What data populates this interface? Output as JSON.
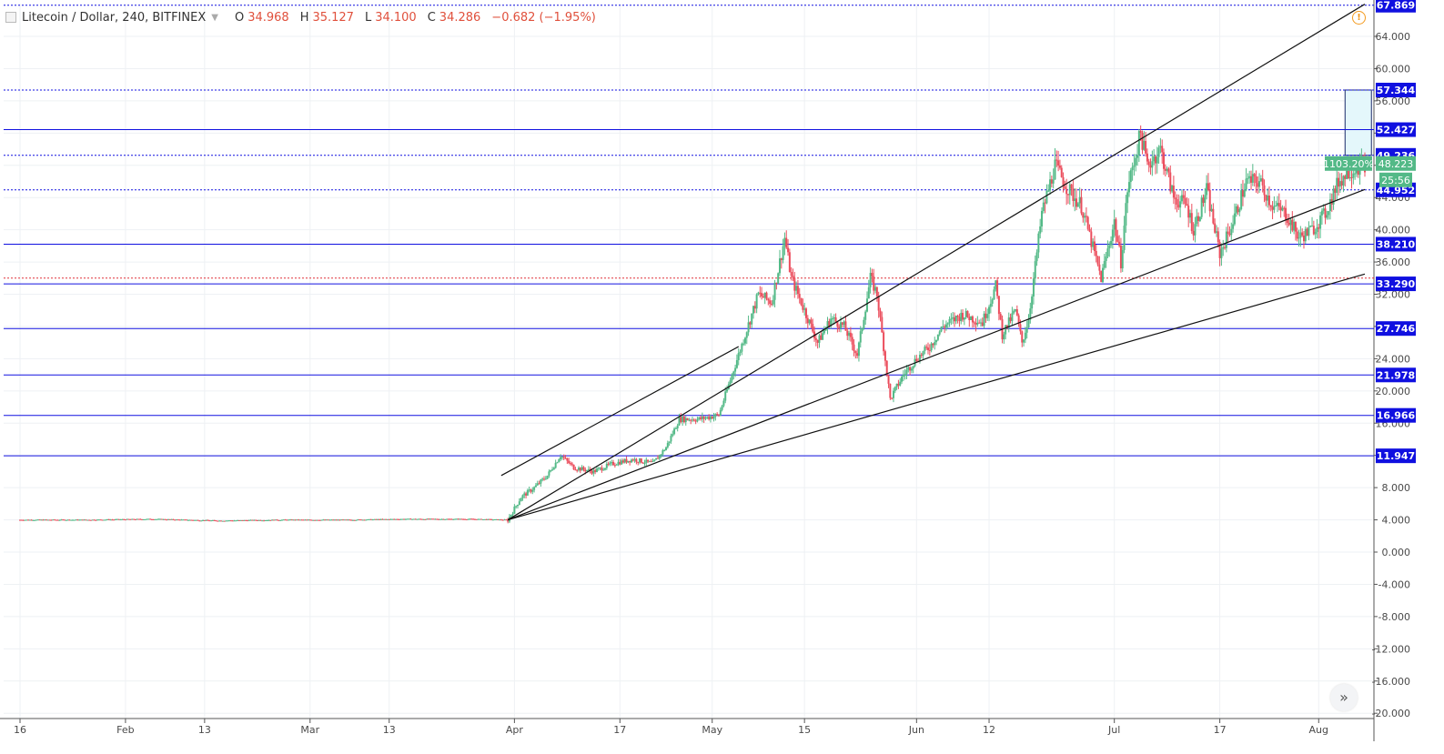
{
  "header": {
    "symbol_title": "Litecoin / Dollar, 240, BITFINEX",
    "open_label": "O",
    "open_value": "34.968",
    "high_label": "H",
    "high_value": "35.127",
    "low_label": "L",
    "low_value": "34.100",
    "close_label": "C",
    "close_value": "34.286",
    "change_value": "−0.682 (−1.95%)"
  },
  "colors": {
    "up": "#53b987",
    "down": "#eb4d5c",
    "hline": "#1010e0",
    "trendline": "#111111",
    "current_price": "#e0303a",
    "grid": "#eef1f4",
    "axis_text": "#4a4a4a",
    "measure_fill": "#e4f7fb",
    "measure_border": "#1b2a6b"
  },
  "chart_data": {
    "type": "candlestick",
    "symbol": "Litecoin / Dollar",
    "interval": "240",
    "exchange": "BITFINEX",
    "y_range": [
      -20,
      68
    ],
    "y_ticks": [
      "-20.000",
      "-16.000",
      "-12.000",
      "-8.000",
      "-4.000",
      "0.000",
      "4.000",
      "8.000",
      "12.000",
      "16.000",
      "20.000",
      "24.000",
      "28.000",
      "32.000",
      "36.000",
      "40.000",
      "44.000",
      "48.000",
      "52.000",
      "56.000",
      "60.000",
      "64.000"
    ],
    "x_labels": [
      {
        "label": "16",
        "day": 0
      },
      {
        "label": "Feb",
        "day": 16
      },
      {
        "label": "13",
        "day": 28
      },
      {
        "label": "Mar",
        "day": 44
      },
      {
        "label": "13",
        "day": 56
      },
      {
        "label": "Apr",
        "day": 75
      },
      {
        "label": "17",
        "day": 91
      },
      {
        "label": "May",
        "day": 105
      },
      {
        "label": "15",
        "day": 119
      },
      {
        "label": "Jun",
        "day": 136
      },
      {
        "label": "12",
        "day": 147
      },
      {
        "label": "Jul",
        "day": 166
      },
      {
        "label": "17",
        "day": 182
      },
      {
        "label": "Aug",
        "day": 197
      }
    ],
    "horizontal_levels": [
      {
        "value": 67.869,
        "label": "67.869",
        "style": "dotted"
      },
      {
        "value": 57.344,
        "label": "57.344",
        "style": "dotted"
      },
      {
        "value": 52.427,
        "label": "52.427",
        "style": "solid"
      },
      {
        "value": 49.236,
        "label": "49.236",
        "style": "dotted"
      },
      {
        "value": 44.952,
        "label": "44.952",
        "style": "dotted"
      },
      {
        "value": 38.21,
        "label": "38.210",
        "style": "solid"
      },
      {
        "value": 33.29,
        "label": "33.290",
        "style": "solid"
      },
      {
        "value": 27.746,
        "label": "27.746",
        "style": "solid"
      },
      {
        "value": 21.978,
        "label": "21.978",
        "style": "solid"
      },
      {
        "value": 16.966,
        "label": "16.966",
        "style": "solid"
      },
      {
        "value": 11.947,
        "label": "11.947",
        "style": "solid"
      }
    ],
    "current_price_line": {
      "value": 34.0
    },
    "last_price": {
      "value": 48.223,
      "label": "48.223",
      "change_badge": "1103.20%",
      "countdown": "25:56"
    },
    "trendlines": [
      {
        "from": [
          74,
          4.0
        ],
        "to": [
          204,
          68.0
        ]
      },
      {
        "from": [
          74,
          4.0
        ],
        "to": [
          204,
          45.0
        ]
      },
      {
        "from": [
          74,
          4.0
        ],
        "to": [
          204,
          34.5
        ]
      },
      {
        "from": [
          73,
          9.5
        ],
        "to": [
          109,
          25.5
        ]
      }
    ],
    "measure_box": {
      "x_start": 201,
      "x_end": 205,
      "y_low": 49.236,
      "y_high": 57.344
    },
    "price_path": [
      [
        0,
        4.0
      ],
      [
        10,
        4.0
      ],
      [
        20,
        4.1
      ],
      [
        30,
        3.9
      ],
      [
        40,
        4.0
      ],
      [
        50,
        4.0
      ],
      [
        58,
        4.1
      ],
      [
        68,
        4.1
      ],
      [
        74,
        4.0
      ],
      [
        76,
        6.8
      ],
      [
        78,
        8.0
      ],
      [
        80,
        9.5
      ],
      [
        82,
        12.0
      ],
      [
        84,
        10.5
      ],
      [
        87,
        10.0
      ],
      [
        90,
        11.0
      ],
      [
        93,
        11.5
      ],
      [
        96,
        11.0
      ],
      [
        98,
        13.0
      ],
      [
        100,
        16.5
      ],
      [
        103,
        16.5
      ],
      [
        106,
        17.0
      ],
      [
        108,
        22.0
      ],
      [
        110,
        27.0
      ],
      [
        112,
        32.0
      ],
      [
        114,
        31.0
      ],
      [
        116,
        39.0
      ],
      [
        117,
        34.0
      ],
      [
        119,
        30.0
      ],
      [
        121,
        26.0
      ],
      [
        123,
        29.0
      ],
      [
        125,
        28.0
      ],
      [
        127,
        24.5
      ],
      [
        129,
        34.0
      ],
      [
        130,
        32.0
      ],
      [
        132,
        19.0
      ],
      [
        134,
        22.0
      ],
      [
        136,
        24.0
      ],
      [
        138,
        25.5
      ],
      [
        140,
        28.0
      ],
      [
        143,
        29.5
      ],
      [
        146,
        28.5
      ],
      [
        148,
        33.0
      ],
      [
        149,
        27.0
      ],
      [
        151,
        30.0
      ],
      [
        152,
        26.0
      ],
      [
        153,
        29.0
      ],
      [
        155,
        42.0
      ],
      [
        157,
        48.0
      ],
      [
        159,
        45.0
      ],
      [
        161,
        43.0
      ],
      [
        163,
        37.0
      ],
      [
        164,
        34.0
      ],
      [
        166,
        41.0
      ],
      [
        167,
        36.0
      ],
      [
        168,
        45.0
      ],
      [
        170,
        52.0
      ],
      [
        171,
        48.0
      ],
      [
        173,
        50.0
      ],
      [
        175,
        44.0
      ],
      [
        177,
        43.0
      ],
      [
        178,
        40.0
      ],
      [
        180,
        45.0
      ],
      [
        182,
        37.0
      ],
      [
        184,
        41.0
      ],
      [
        186,
        46.0
      ],
      [
        188,
        46.0
      ],
      [
        190,
        43.0
      ],
      [
        192,
        42.0
      ],
      [
        194,
        39.0
      ],
      [
        196,
        40.0
      ],
      [
        198,
        42.0
      ],
      [
        200,
        46.0
      ],
      [
        202,
        47.5
      ],
      [
        204,
        48.2
      ]
    ]
  },
  "controls": {
    "scroll_to_latest_glyph": "»",
    "alert_glyph": "!"
  }
}
